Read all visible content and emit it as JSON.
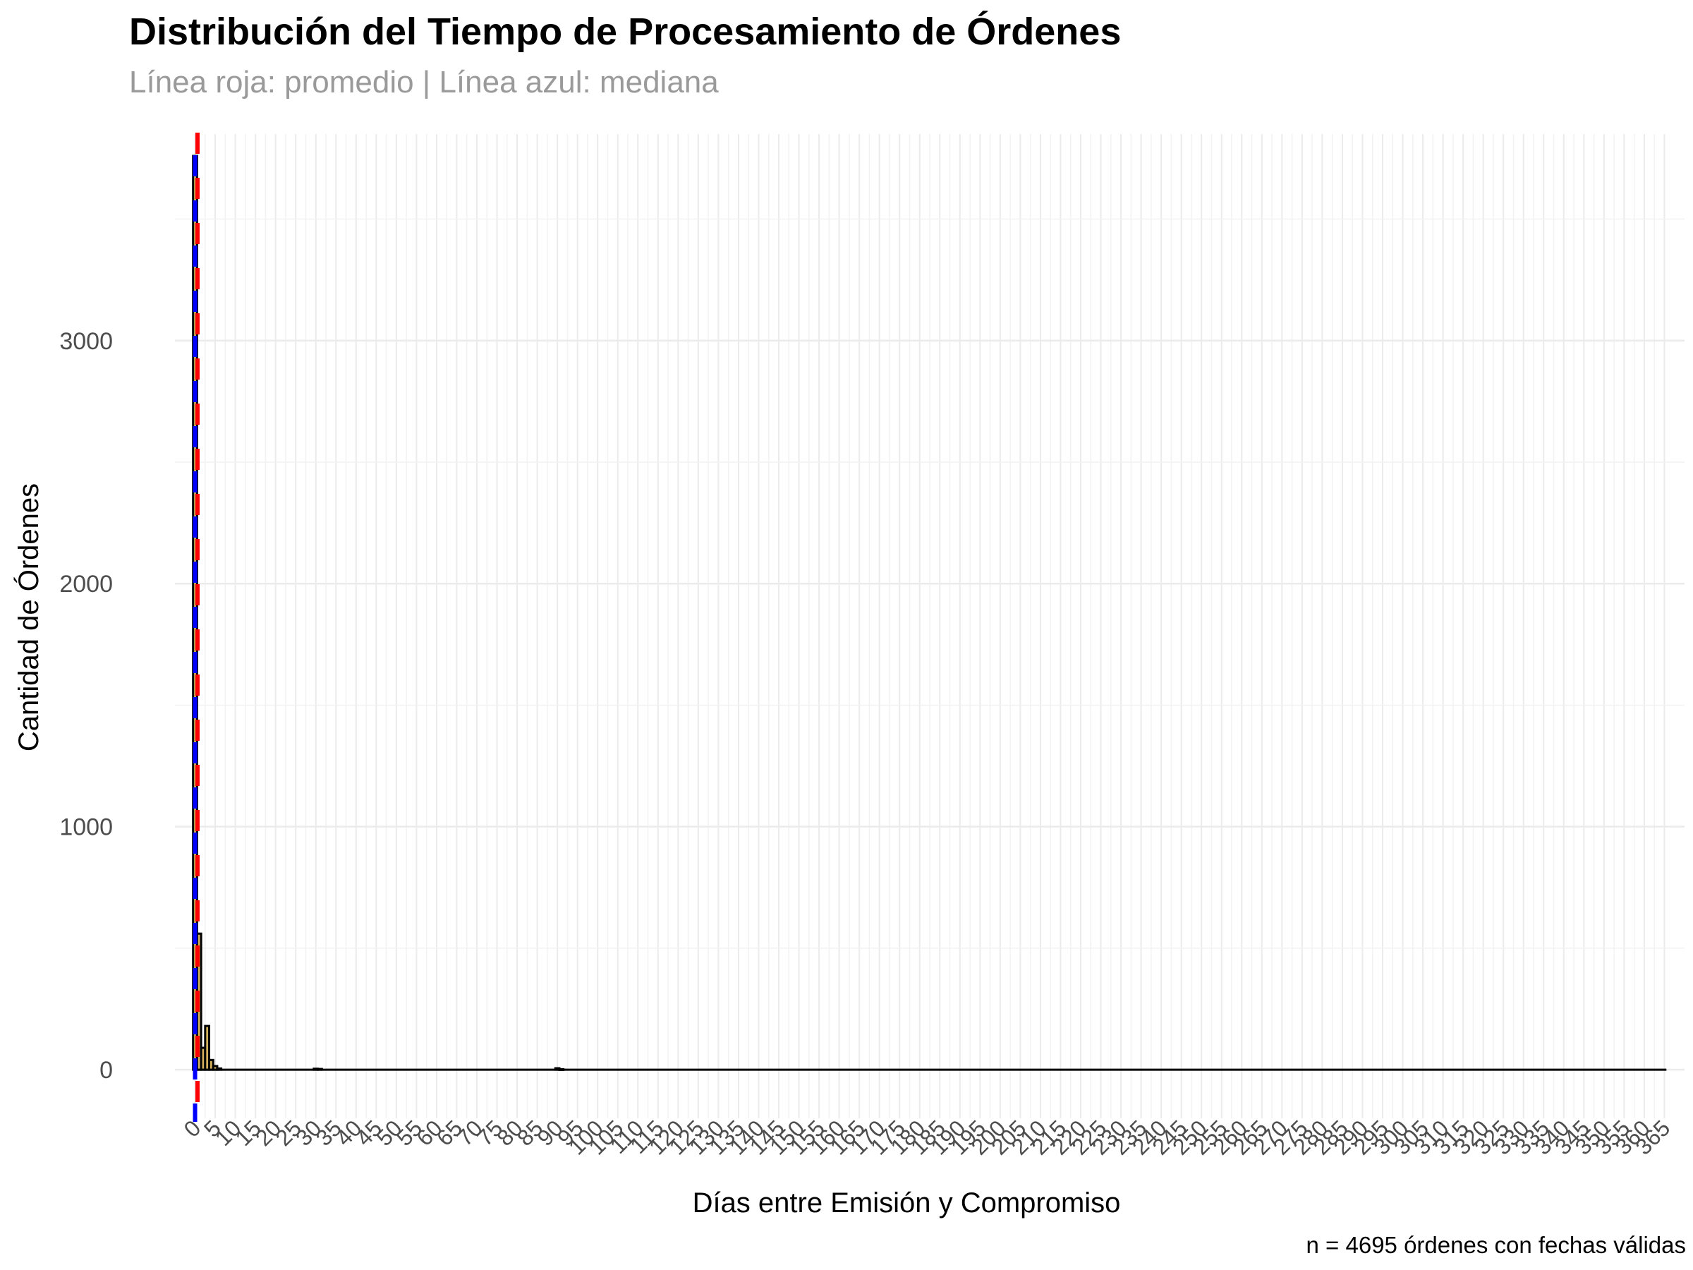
{
  "chart_data": {
    "type": "bar",
    "title": "Distribución del Tiempo de Procesamiento de Órdenes",
    "subtitle": "Línea roja: promedio | Línea azul: mediana",
    "caption": "n = 4695 órdenes con fechas válidas",
    "xlabel": "Días entre Emisión y Compromiso",
    "ylabel": "Cantidad de Órdenes",
    "xlim": [
      -5,
      370
    ],
    "ylim": [
      -200,
      3850
    ],
    "x_ticks": [
      0,
      5,
      10,
      15,
      20,
      25,
      30,
      35,
      40,
      45,
      50,
      55,
      60,
      65,
      70,
      75,
      80,
      85,
      90,
      95,
      100,
      105,
      110,
      115,
      120,
      125,
      130,
      135,
      140,
      145,
      150,
      155,
      160,
      165,
      170,
      175,
      180,
      185,
      190,
      195,
      200,
      205,
      210,
      215,
      220,
      225,
      230,
      235,
      240,
      245,
      250,
      255,
      260,
      265,
      270,
      275,
      280,
      285,
      290,
      295,
      300,
      305,
      310,
      315,
      320,
      325,
      330,
      335,
      340,
      345,
      350,
      355,
      360,
      365
    ],
    "y_ticks": [
      0,
      1000,
      2000,
      3000
    ],
    "bin_width": 1,
    "x": [
      0,
      1,
      2,
      3,
      4,
      5,
      6,
      30,
      31,
      90,
      91
    ],
    "values": [
      3760,
      560,
      90,
      180,
      40,
      15,
      5,
      4,
      3,
      6,
      2
    ],
    "baseline_end_x": 365,
    "mean_line": {
      "label": "promedio",
      "color": "#ff0000",
      "x": 0.6
    },
    "median_line": {
      "label": "mediana",
      "color": "#0000ff",
      "x": 0.0
    },
    "bar_fill": "#d4b15c",
    "bar_outline": "#000000",
    "grid": true,
    "legend": "none"
  }
}
